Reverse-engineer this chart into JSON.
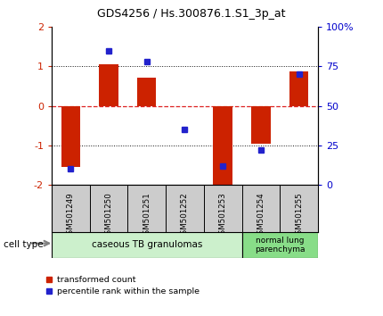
{
  "title": "GDS4256 / Hs.300876.1.S1_3p_at",
  "samples": [
    "GSM501249",
    "GSM501250",
    "GSM501251",
    "GSM501252",
    "GSM501253",
    "GSM501254",
    "GSM501255"
  ],
  "red_values": [
    -1.55,
    1.05,
    0.72,
    -0.02,
    -2.0,
    -0.95,
    0.88
  ],
  "blue_pct": [
    10,
    85,
    78,
    35,
    12,
    22,
    70
  ],
  "ylim_left": [
    -2,
    2
  ],
  "ylim_right": [
    0,
    100
  ],
  "yticks_left": [
    -2,
    -1,
    0,
    1,
    2
  ],
  "yticks_right": [
    0,
    25,
    50,
    75,
    100
  ],
  "ytick_labels_right": [
    "0",
    "25",
    "50",
    "75",
    "100%"
  ],
  "hline_0_color": "#dd2222",
  "hline_other_color": "#111111",
  "bar_color": "#cc2200",
  "blue_color": "#2222cc",
  "group1_label": "caseous TB granulomas",
  "group2_label": "normal lung\nparenchyma",
  "group1_count": 5,
  "group2_count": 2,
  "group1_color": "#ccf0cc",
  "group2_color": "#88dd88",
  "cell_type_label": "cell type",
  "legend_red": "transformed count",
  "legend_blue": "percentile rank within the sample",
  "bar_width": 0.5,
  "plot_bg": "#ffffff",
  "left_tick_color": "#cc2200",
  "right_tick_color": "#0000cc",
  "label_bg": "#cccccc"
}
